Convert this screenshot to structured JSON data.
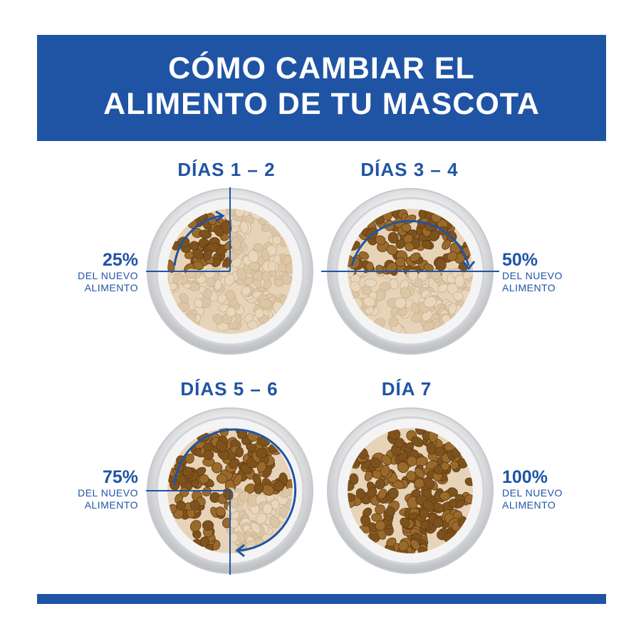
{
  "banner": {
    "title_line1": "CÓMO CAMBIAR EL",
    "title_line2": "ALIMENTO DE TU MASCOTA",
    "color": "#1f54a5"
  },
  "stages": [
    {
      "title": "DÍAS 1 – 2",
      "percent": "25%",
      "caption_line1": "DEL NUEVO",
      "caption_line2": "ALIMENTO",
      "new_fraction": 0.25
    },
    {
      "title": "DÍAS 3 – 4",
      "percent": "50%",
      "caption_line1": "DEL NUEVO",
      "caption_line2": "ALIMENTO",
      "new_fraction": 0.5
    },
    {
      "title": "DÍAS 5 – 6",
      "percent": "75%",
      "caption_line1": "DEL NUEVO",
      "caption_line2": "ALIMENTO",
      "new_fraction": 0.75
    },
    {
      "title": "DÍA 7",
      "percent": "100%",
      "caption_line1": "DEL NUEVO",
      "caption_line2": "ALIMENTO",
      "new_fraction": 1.0
    }
  ],
  "colors": {
    "accent": "#1f54a5",
    "new_food": "#9a6a2c",
    "old_food": "#e7d3b8",
    "bowl": "#d9dadc"
  }
}
